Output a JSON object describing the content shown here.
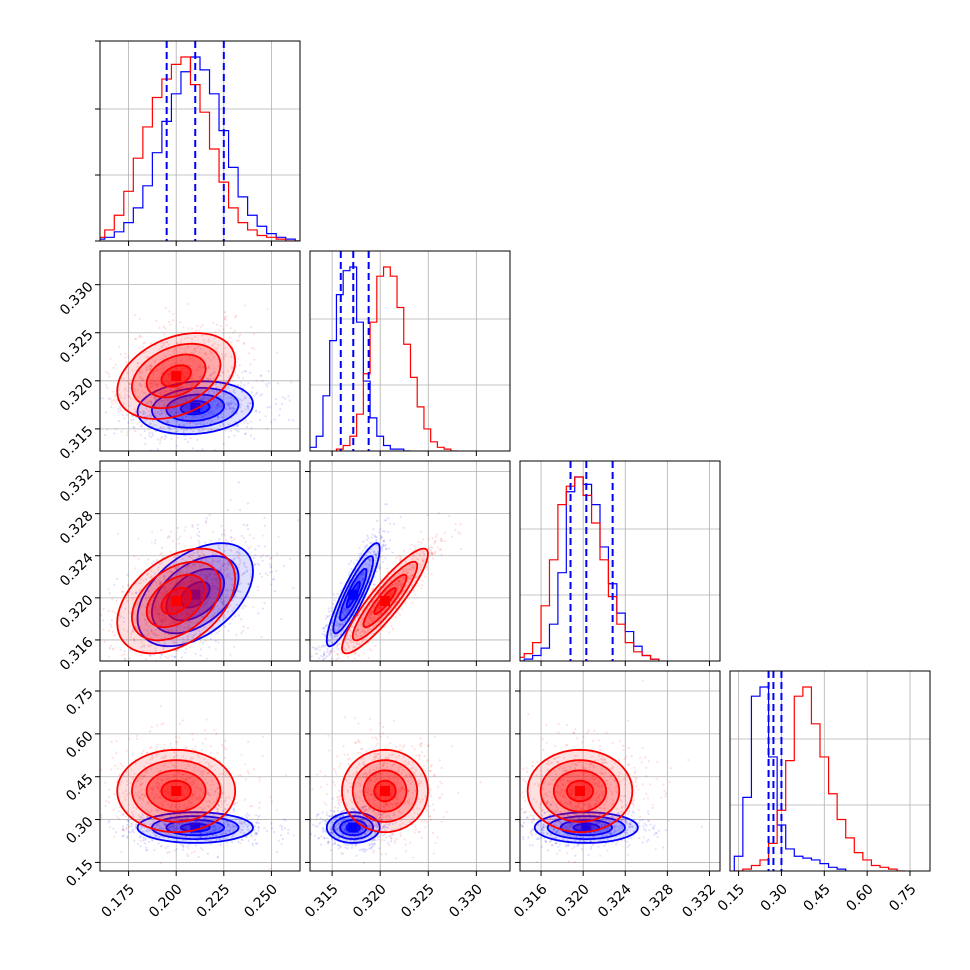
{
  "colors": {
    "series_a": "#0000ff",
    "series_b": "#ff0000",
    "grid": "#b0b0b0",
    "frame": "#000000"
  },
  "chart_data": {
    "type": "corner",
    "title": "",
    "series": [
      {
        "color": "#0000ff",
        "quantiles": {
          "p0": [
            0.195,
            0.21,
            0.225
          ],
          "p1": [
            0.3159,
            0.3172,
            0.3188
          ],
          "p2": [
            0.3188,
            0.3203,
            0.3228
          ],
          "p3": [
            0.255,
            0.272,
            0.3
          ]
        },
        "means": [
          0.21,
          0.3172,
          0.3203,
          0.272
        ],
        "cov": [
          [
            0.00023,
            3e-06,
            1.7e-05,
            0.0
          ],
          [
            3e-06,
            1.9e-06,
            3e-06,
            0.0
          ],
          [
            1.7e-05,
            3e-06,
            6e-06,
            0.0
          ],
          [
            0.0,
            0.0,
            0.0,
            0.00072
          ]
        ],
        "histograms": {
          "p0": {
            "x": [
              0.16,
              0.165,
              0.17,
              0.175,
              0.18,
              0.185,
              0.19,
              0.195,
              0.2,
              0.205,
              0.21,
              0.215,
              0.22,
              0.225,
              0.23,
              0.235,
              0.24,
              0.245,
              0.25,
              0.255,
              0.26,
              0.265
            ],
            "y": [
              0.01,
              0.02,
              0.05,
              0.1,
              0.18,
              0.3,
              0.48,
              0.65,
              0.8,
              0.92,
              1.0,
              0.93,
              0.8,
              0.6,
              0.4,
              0.24,
              0.14,
              0.08,
              0.04,
              0.02,
              0.01,
              0.0
            ]
          },
          "p1": {
            "x": [
              0.313,
              0.3137,
              0.3144,
              0.3151,
              0.3158,
              0.3165,
              0.3172,
              0.3179,
              0.3186,
              0.3193,
              0.32,
              0.3207,
              0.3214,
              0.3221,
              0.3228
            ],
            "y": [
              0.02,
              0.08,
              0.3,
              0.6,
              0.85,
              0.98,
              1.0,
              0.7,
              0.38,
              0.18,
              0.08,
              0.03,
              0.01,
              0.01,
              0.0
            ]
          },
          "p2": {
            "x": [
              0.314,
              0.3148,
              0.3156,
              0.3164,
              0.3172,
              0.318,
              0.3188,
              0.3196,
              0.3204,
              0.3212,
              0.322,
              0.3228,
              0.3236,
              0.3244,
              0.3252,
              0.326,
              0.3268
            ],
            "y": [
              0.0,
              0.01,
              0.03,
              0.07,
              0.2,
              0.48,
              0.92,
              1.0,
              0.96,
              0.85,
              0.62,
              0.42,
              0.26,
              0.16,
              0.08,
              0.03,
              0.01
            ]
          },
          "p3": {
            "x": [
              0.15,
              0.18,
              0.21,
              0.24,
              0.27,
              0.3,
              0.33,
              0.36,
              0.39,
              0.42,
              0.45,
              0.48,
              0.51
            ],
            "y": [
              0.08,
              0.4,
              0.95,
              1.0,
              0.62,
              0.25,
              0.12,
              0.08,
              0.07,
              0.06,
              0.04,
              0.02,
              0.01
            ]
          }
        }
      },
      {
        "color": "#ff0000",
        "means": [
          0.2,
          0.3205,
          0.3197,
          0.4
        ],
        "cov": [
          [
            0.00024,
            1.2e-05,
            1.6e-05,
            0.0
          ],
          [
            1.2e-05,
            5e-06,
            5e-06,
            0.0
          ],
          [
            1.6e-05,
            5e-06,
            6.2e-06,
            0.0
          ],
          [
            0.0,
            0.0,
            0.0,
            0.0052
          ]
        ],
        "histograms": {
          "p0": {
            "x": [
              0.16,
              0.165,
              0.17,
              0.175,
              0.18,
              0.185,
              0.19,
              0.195,
              0.2,
              0.205,
              0.21,
              0.215,
              0.22,
              0.225,
              0.23,
              0.235,
              0.24,
              0.245,
              0.25,
              0.255,
              0.26,
              0.265
            ],
            "y": [
              0.02,
              0.06,
              0.14,
              0.27,
              0.45,
              0.62,
              0.78,
              0.88,
              0.96,
              1.0,
              0.85,
              0.7,
              0.5,
              0.32,
              0.18,
              0.1,
              0.06,
              0.03,
              0.02,
              0.01,
              0.0,
              0.0
            ]
          },
          "p1": {
            "x": [
              0.3158,
              0.3165,
              0.3172,
              0.3179,
              0.3186,
              0.3193,
              0.32,
              0.3207,
              0.3214,
              0.3221,
              0.3228,
              0.3235,
              0.3242,
              0.3249,
              0.3256,
              0.3263,
              0.327,
              0.3277
            ],
            "y": [
              0.01,
              0.03,
              0.08,
              0.2,
              0.42,
              0.7,
              0.95,
              1.0,
              0.95,
              0.78,
              0.58,
              0.4,
              0.24,
              0.12,
              0.05,
              0.02,
              0.01,
              0.0
            ]
          },
          "p2": {
            "x": [
              0.314,
              0.3148,
              0.3156,
              0.3164,
              0.3172,
              0.318,
              0.3188,
              0.3196,
              0.3204,
              0.3212,
              0.322,
              0.3228,
              0.3236,
              0.3244,
              0.3252,
              0.326,
              0.3268
            ],
            "y": [
              0.02,
              0.04,
              0.1,
              0.3,
              0.55,
              0.85,
              0.95,
              1.0,
              0.9,
              0.75,
              0.55,
              0.35,
              0.2,
              0.1,
              0.05,
              0.03,
              0.01
            ]
          },
          "p3": {
            "x": [
              0.15,
              0.18,
              0.21,
              0.24,
              0.27,
              0.3,
              0.33,
              0.36,
              0.39,
              0.42,
              0.45,
              0.48,
              0.51,
              0.54,
              0.57,
              0.6,
              0.63,
              0.66,
              0.69,
              0.72
            ],
            "y": [
              0.0,
              0.01,
              0.03,
              0.06,
              0.15,
              0.33,
              0.6,
              0.95,
              1.0,
              0.8,
              0.62,
              0.42,
              0.28,
              0.18,
              0.1,
              0.06,
              0.03,
              0.02,
              0.01,
              0.0
            ]
          }
        }
      }
    ],
    "axes": {
      "p0": {
        "range": [
          0.16,
          0.265
        ],
        "ticks": [
          0.175,
          0.2,
          0.225,
          0.25
        ],
        "tick_labels": [
          "0.175",
          "0.200",
          "0.225",
          "0.250"
        ]
      },
      "p1": {
        "range": [
          0.3127,
          0.3335
        ],
        "ticks": [
          0.315,
          0.32,
          0.325,
          0.33
        ],
        "tick_labels": [
          "0.315",
          "0.320",
          "0.325",
          "0.330"
        ]
      },
      "p2": {
        "range": [
          0.314,
          0.333
        ],
        "ticks": [
          0.316,
          0.32,
          0.324,
          0.328,
          0.332
        ],
        "tick_labels": [
          "0.316",
          "0.320",
          "0.324",
          "0.328",
          "0.332"
        ]
      },
      "p3": {
        "range": [
          0.12,
          0.82
        ],
        "ticks": [
          0.15,
          0.3,
          0.45,
          0.6,
          0.75
        ],
        "tick_labels": [
          "0.15",
          "0.30",
          "0.45",
          "0.60",
          "0.75"
        ]
      }
    },
    "grid": true,
    "legend": "none",
    "quantile_lines": "series_a (blue, dashed)"
  }
}
